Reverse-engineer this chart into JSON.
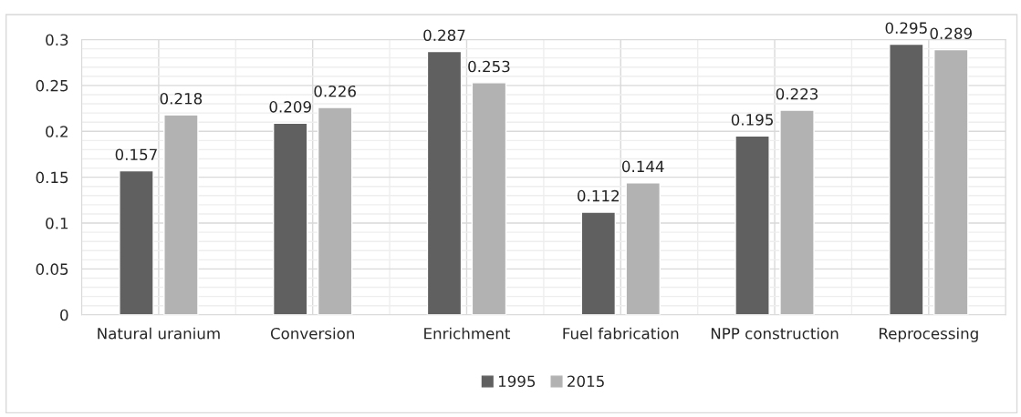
{
  "chart_data": {
    "type": "bar",
    "categories": [
      "Natural uranium",
      "Conversion",
      "Enrichment",
      "Fuel fabrication",
      "NPP construction",
      "Reprocessing"
    ],
    "series": [
      {
        "name": "1995",
        "color": "#606060",
        "values": [
          0.157,
          0.209,
          0.287,
          0.112,
          0.195,
          0.295
        ]
      },
      {
        "name": "2015",
        "color": "#b2b2b2",
        "values": [
          0.218,
          0.226,
          0.253,
          0.144,
          0.223,
          0.289
        ]
      }
    ],
    "ylim": [
      0,
      0.3
    ],
    "yticks": [
      0,
      0.05,
      {
        "value": 0.1,
        "label": "0.1"
      },
      0.15,
      {
        "value": 0.2,
        "label": "0.2"
      },
      0.25,
      {
        "value": 0.3,
        "label": "0.3"
      }
    ],
    "grid": true,
    "legend": "bottom",
    "data_labels": true
  }
}
